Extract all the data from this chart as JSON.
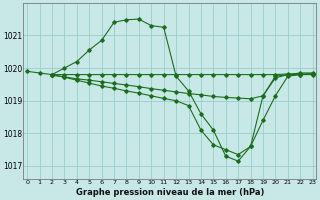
{
  "background_color": "#c8e8e8",
  "grid_color": "#99cccc",
  "line_color": "#1a6e1a",
  "title": "Graphe pression niveau de la mer (hPa)",
  "xlim": [
    -0.3,
    23.3
  ],
  "ylim": [
    1016.6,
    1022.0
  ],
  "yticks": [
    1017,
    1018,
    1019,
    1020,
    1021
  ],
  "xticks": [
    0,
    1,
    2,
    3,
    4,
    5,
    6,
    7,
    8,
    9,
    10,
    11,
    12,
    13,
    14,
    15,
    16,
    17,
    18,
    19,
    20,
    21,
    22,
    23
  ],
  "series": [
    {
      "x": [
        0,
        1,
        2,
        3,
        4,
        5,
        6,
        7,
        8,
        9,
        10,
        11,
        12,
        13,
        14,
        15,
        16,
        17,
        18,
        19,
        20,
        21,
        22,
        23
      ],
      "y": [
        1019.9,
        1019.85,
        1019.8,
        1020.0,
        1020.2,
        1020.55,
        1020.85,
        1021.4,
        1021.48,
        1021.5,
        1021.3,
        1021.25,
        1019.75,
        1019.3,
        1018.6,
        1018.1,
        1017.3,
        1017.15,
        1017.6,
        1019.15,
        1019.75,
        1019.8,
        1019.85,
        1019.85
      ]
    },
    {
      "x": [
        2,
        3,
        4,
        5,
        6,
        7,
        8,
        9,
        10,
        11,
        12,
        13,
        14,
        15,
        16,
        17,
        18,
        19,
        20,
        21,
        22,
        23
      ],
      "y": [
        1019.8,
        1019.8,
        1019.8,
        1019.8,
        1019.8,
        1019.8,
        1019.8,
        1019.8,
        1019.8,
        1019.8,
        1019.8,
        1019.8,
        1019.8,
        1019.8,
        1019.8,
        1019.8,
        1019.8,
        1019.8,
        1019.8,
        1019.82,
        1019.82,
        1019.82
      ]
    },
    {
      "x": [
        2,
        3,
        4,
        5,
        6,
        7,
        8,
        9,
        10,
        11,
        12,
        13,
        14,
        15,
        16,
        17,
        18,
        19,
        20,
        21,
        22,
        23
      ],
      "y": [
        1019.78,
        1019.73,
        1019.67,
        1019.63,
        1019.58,
        1019.53,
        1019.48,
        1019.43,
        1019.37,
        1019.32,
        1019.27,
        1019.22,
        1019.18,
        1019.13,
        1019.1,
        1019.08,
        1019.06,
        1019.15,
        1019.7,
        1019.8,
        1019.8,
        1019.8
      ]
    },
    {
      "x": [
        2,
        3,
        4,
        5,
        6,
        7,
        8,
        9,
        10,
        11,
        12,
        13,
        14,
        15,
        16,
        17,
        18,
        19,
        20,
        21,
        22,
        23
      ],
      "y": [
        1019.8,
        1019.72,
        1019.63,
        1019.54,
        1019.45,
        1019.38,
        1019.3,
        1019.23,
        1019.15,
        1019.07,
        1019.0,
        1018.85,
        1018.1,
        1017.65,
        1017.5,
        1017.35,
        1017.6,
        1018.4,
        1019.15,
        1019.75,
        1019.8,
        1019.82
      ]
    }
  ]
}
